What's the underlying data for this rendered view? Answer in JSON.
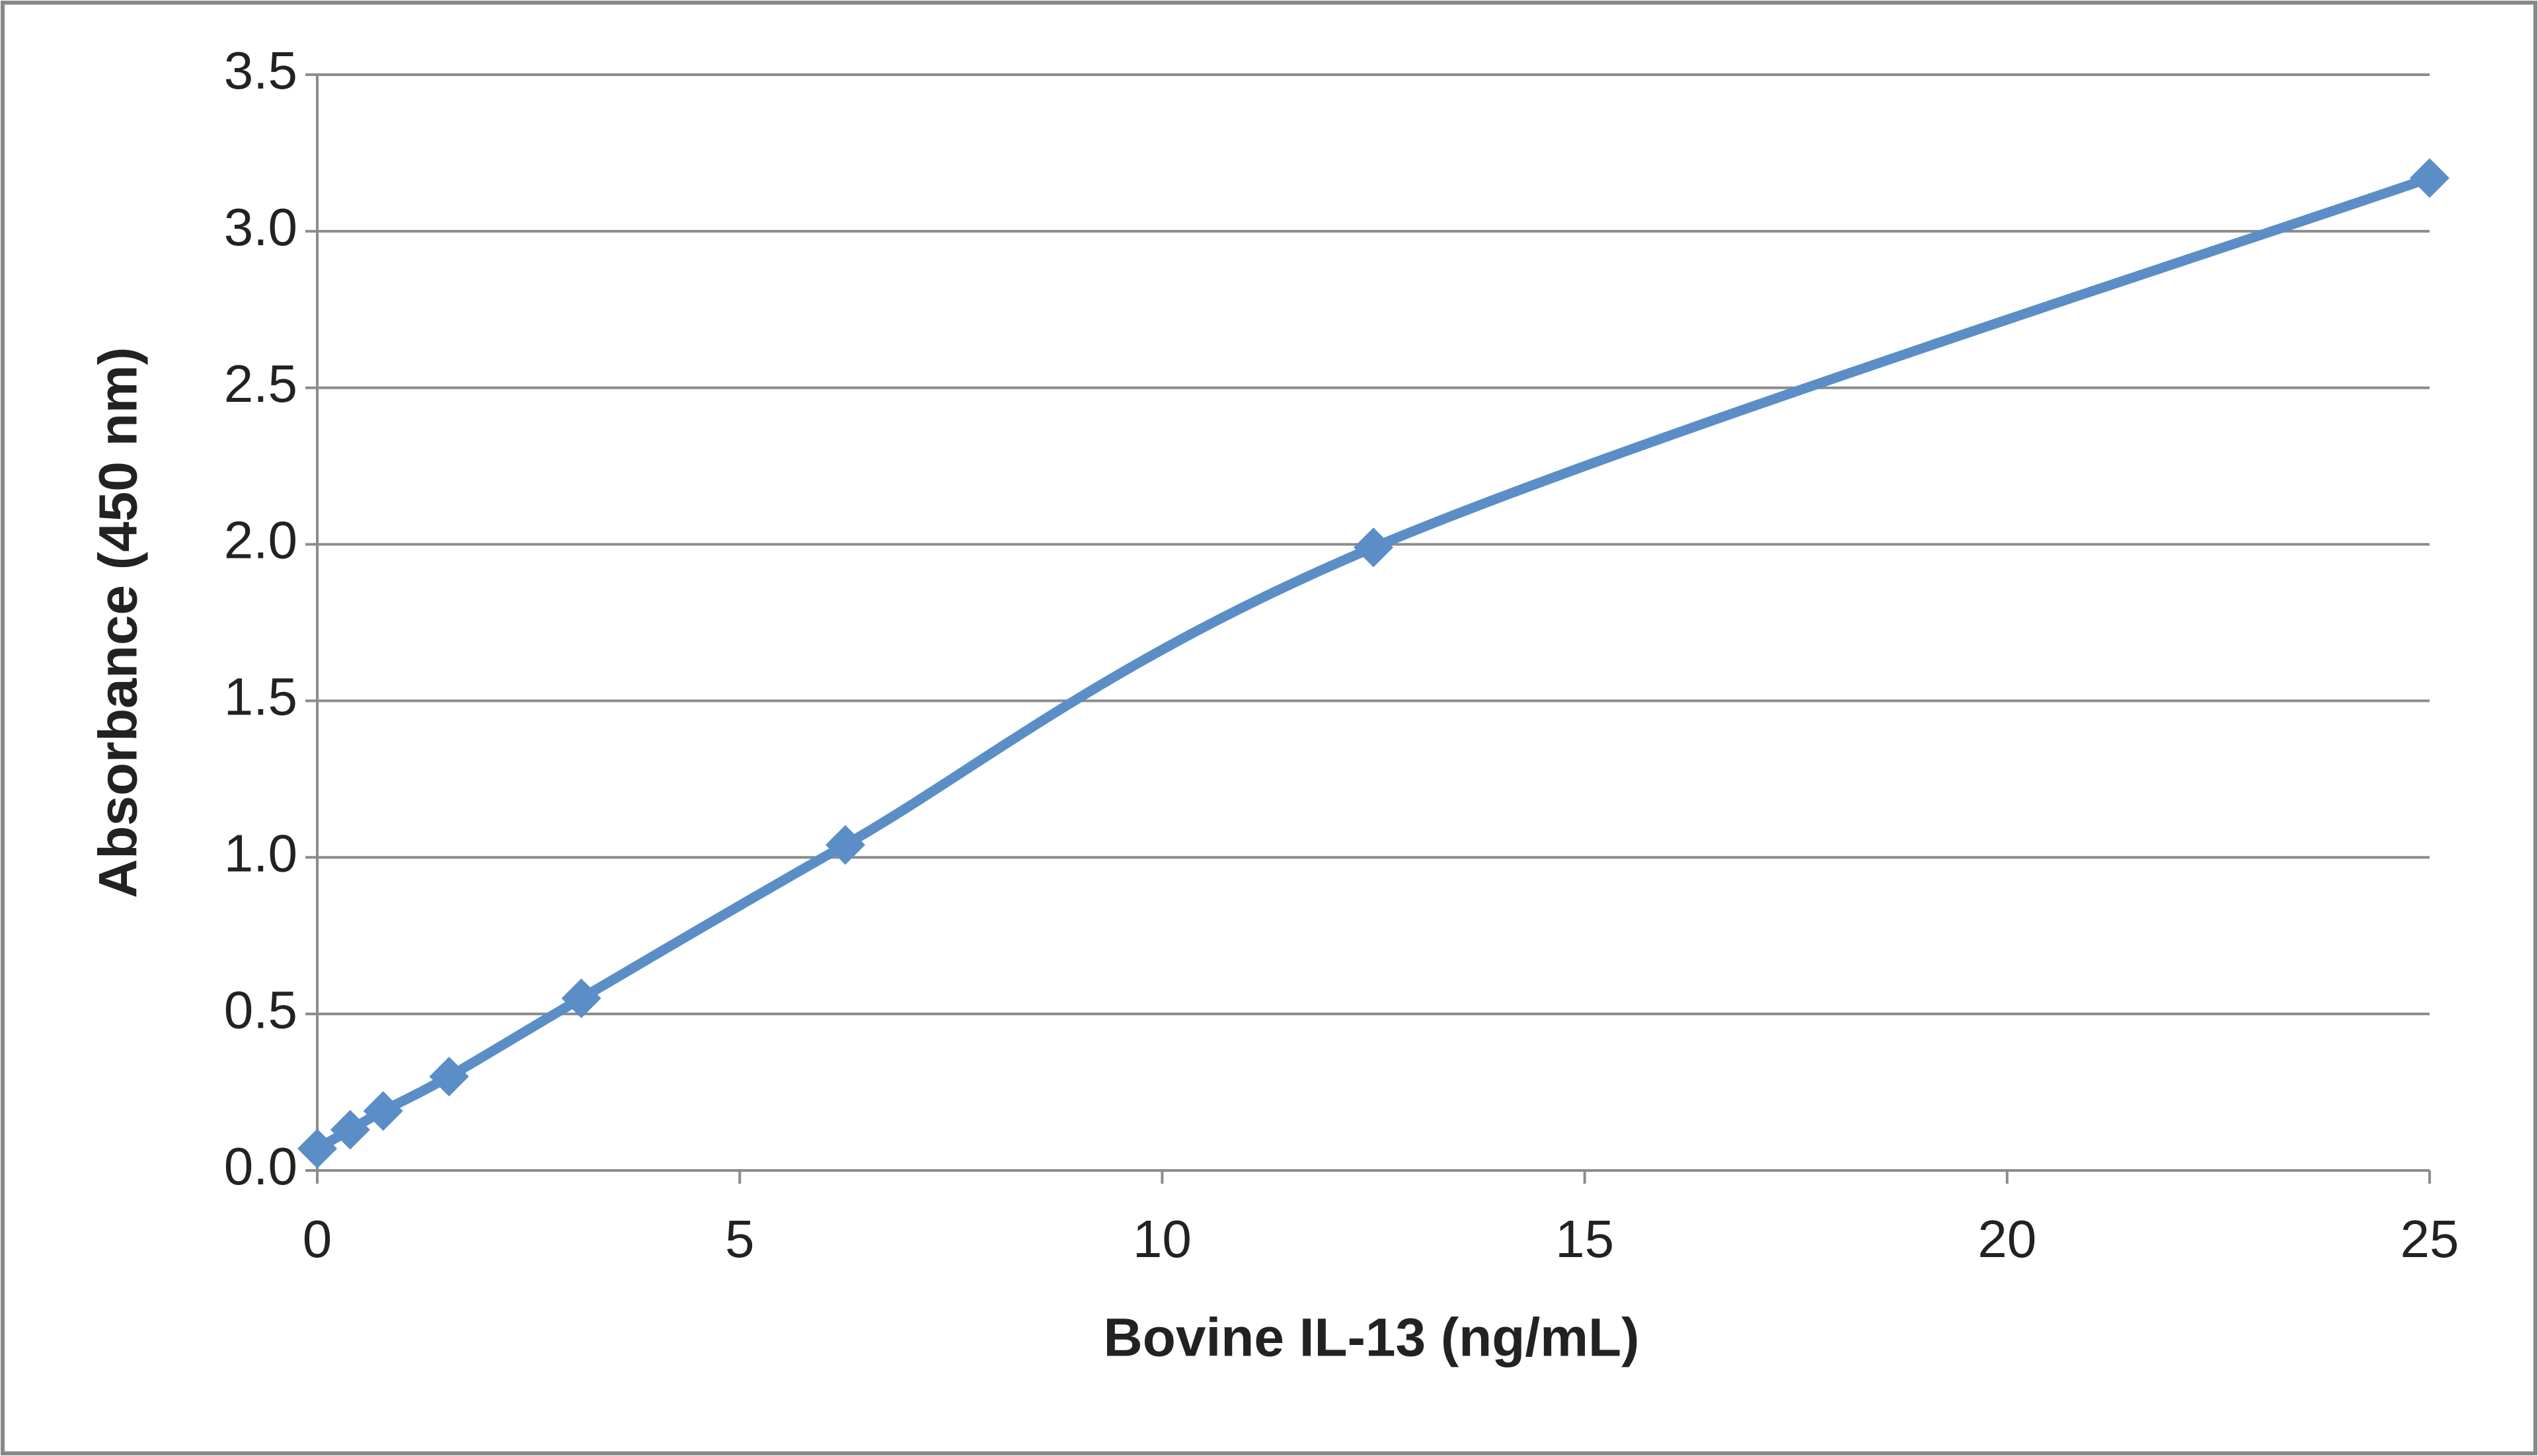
{
  "chart_data": {
    "type": "line",
    "xlabel": "Bovine IL-13 (ng/mL)",
    "ylabel": "Absorbance  (450 nm)",
    "series": [
      {
        "color": "#5b8ec6",
        "x": [
          0,
          0.39,
          0.78,
          1.56,
          3.125,
          6.25,
          12.5,
          25
        ],
        "values": [
          0.07,
          0.13,
          0.19,
          0.3,
          0.55,
          1.04,
          1.99,
          3.17
        ]
      }
    ],
    "xlim": [
      0,
      25
    ],
    "xticks": [
      0,
      5,
      10,
      15,
      20,
      25
    ],
    "ylim": [
      0,
      3.5
    ],
    "yticks": [
      {
        "value": 0,
        "label": "0.0"
      },
      0.5,
      {
        "value": 1,
        "label": "1.0"
      },
      1.5,
      {
        "value": 2,
        "label": "2.0"
      },
      2.5,
      {
        "value": 3,
        "label": "3.0"
      },
      3.5
    ],
    "grid": true,
    "smooth": true
  }
}
